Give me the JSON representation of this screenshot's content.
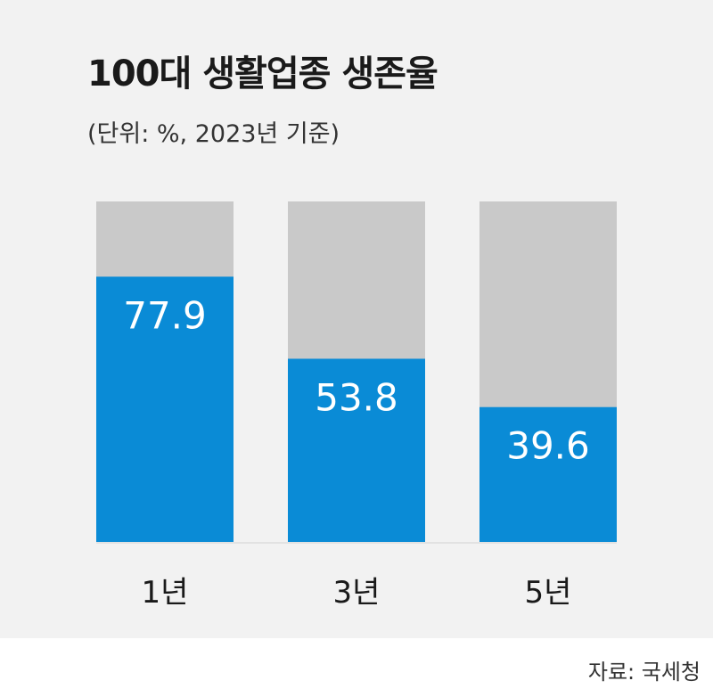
{
  "header": {
    "title": "100대 생활업종 생존율",
    "subtitle": "(단위: %, 2023년 기준)"
  },
  "footer": {
    "source": "자료: 국세청"
  },
  "colors": {
    "value_bar": "#0a8bd6",
    "track_bar": "#c9c9c9",
    "panel_bg": "#f2f2f2",
    "value_text": "#ffffff",
    "category_text": "#1a1a1a"
  },
  "chart_data": {
    "type": "bar",
    "title": "100대 생활업종 생존율",
    "subtitle": "(단위: %, 2023년 기준)",
    "categories": [
      "1년",
      "3년",
      "5년"
    ],
    "values": [
      77.9,
      53.8,
      39.6
    ],
    "value_labels": [
      "77.9",
      "53.8",
      "39.6"
    ],
    "ylim": [
      0,
      100
    ],
    "xlabel": "",
    "ylabel": "",
    "grid": false,
    "legend": "none"
  }
}
